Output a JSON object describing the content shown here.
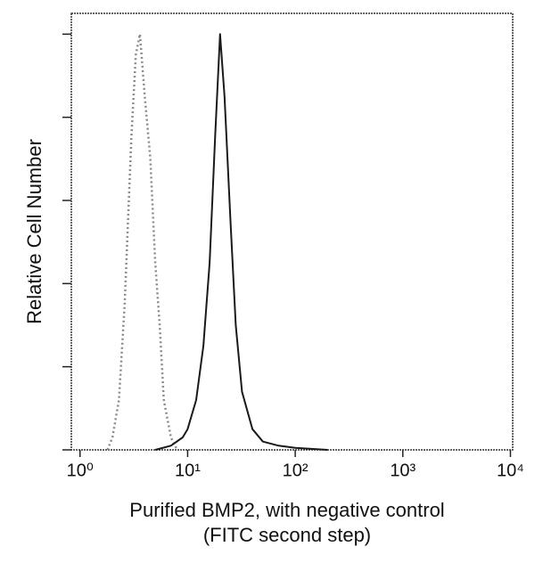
{
  "chart_data": {
    "type": "line",
    "x_label": [
      "Purified BMP2, with negative control",
      "(FITC second step)"
    ],
    "y_label": "Relative Cell Number",
    "xscale": "log",
    "xlim": [
      0.83,
      10500
    ],
    "xticks": [
      {
        "value": 1,
        "label": "10⁰"
      },
      {
        "value": 10,
        "label": "10¹"
      },
      {
        "value": 100,
        "label": "10²"
      },
      {
        "value": 1000,
        "label": "10³"
      },
      {
        "value": 10000,
        "label": "10⁴"
      }
    ],
    "ylim": [
      0,
      105
    ],
    "yticks": [
      0,
      20,
      40,
      60,
      80,
      100
    ],
    "series": [
      {
        "name": "negative control",
        "color": "#8a8a8a",
        "dashed": true,
        "x": [
          1.8,
          2,
          2.3,
          2.6,
          3,
          3.3,
          3.6,
          4,
          4.5,
          5,
          5.5,
          6,
          7,
          8
        ],
        "values": [
          0,
          3,
          12,
          35,
          75,
          95,
          100,
          85,
          70,
          45,
          30,
          12,
          3,
          0
        ]
      },
      {
        "name": "Purified BMP2",
        "color": "#1a1a1a",
        "dashed": false,
        "x": [
          5,
          7,
          9,
          10,
          12,
          14,
          16,
          18,
          20,
          22,
          25,
          28,
          32,
          40,
          50,
          70,
          100,
          200
        ],
        "values": [
          0,
          1,
          3,
          5,
          12,
          25,
          45,
          75,
          100,
          85,
          55,
          30,
          14,
          5,
          2,
          1,
          0.5,
          0
        ]
      }
    ]
  }
}
